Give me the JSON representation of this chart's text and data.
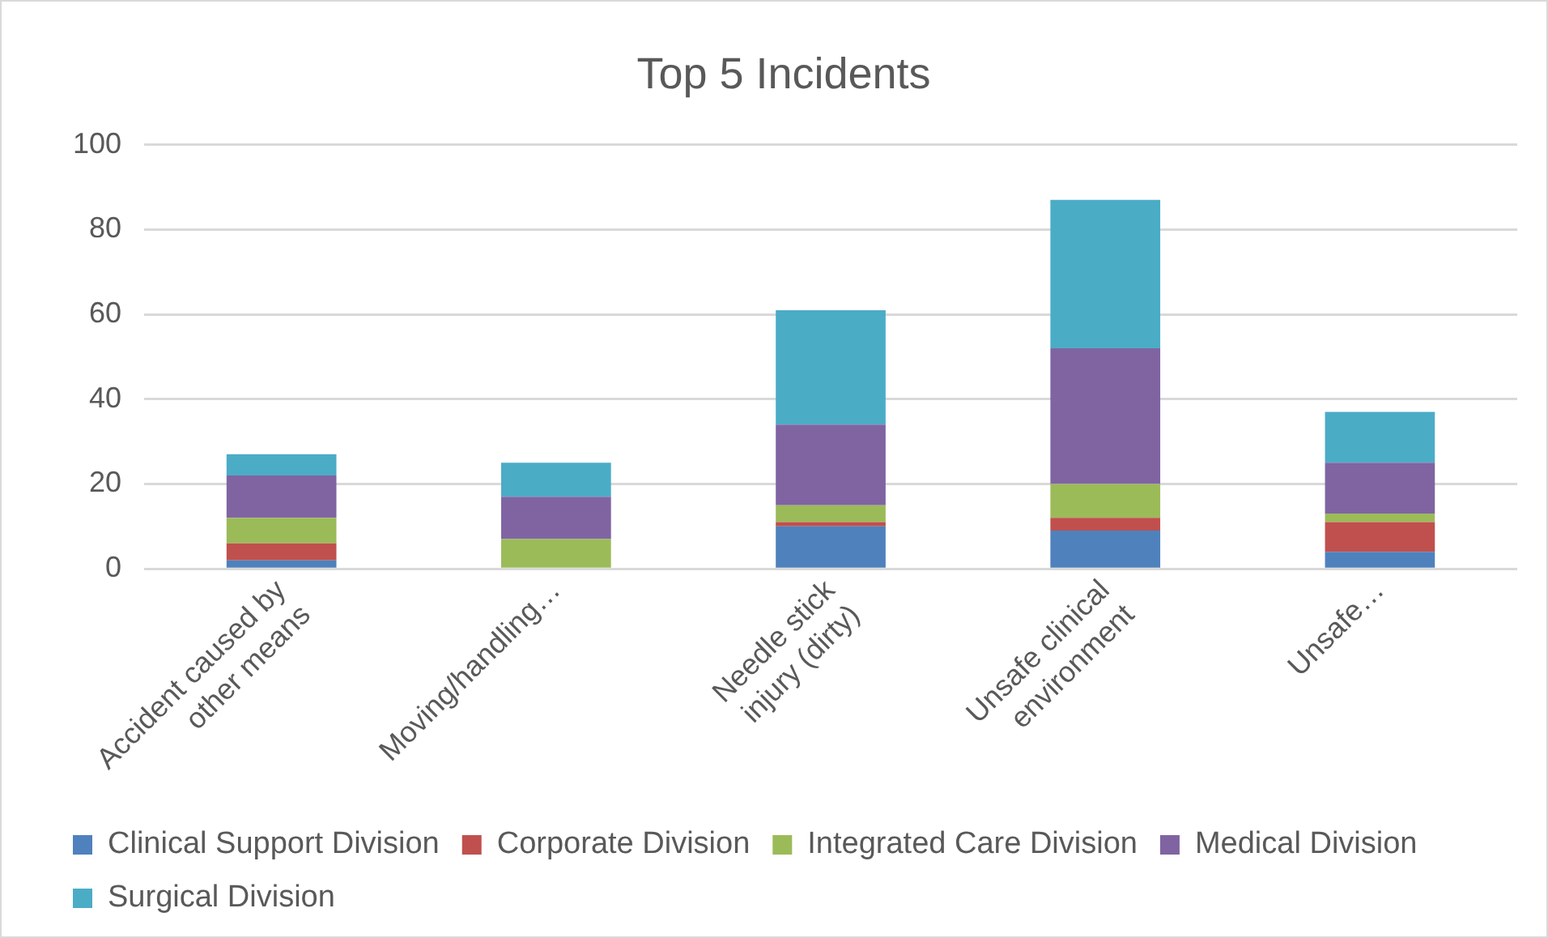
{
  "chart_data": {
    "type": "bar",
    "title": "Top 5 Incidents",
    "stacked": true,
    "categories": [
      "Accident caused by other means",
      "Moving/handling…",
      "Needle stick injury (dirty)",
      "Unsafe clinical environment",
      "Unsafe…"
    ],
    "series": [
      {
        "name": "Clinical Support Division",
        "color": "#4f81bd",
        "values": [
          2,
          0,
          10,
          9,
          4
        ]
      },
      {
        "name": "Corporate Division",
        "color": "#c0504d",
        "values": [
          4,
          0,
          1,
          3,
          7
        ]
      },
      {
        "name": "Integrated Care Division",
        "color": "#9bbb59",
        "values": [
          6,
          7,
          4,
          8,
          2
        ]
      },
      {
        "name": "Medical Division",
        "color": "#8064a2",
        "values": [
          10,
          10,
          19,
          32,
          12
        ]
      },
      {
        "name": "Surgical Division",
        "color": "#4bacc6",
        "values": [
          5,
          8,
          27,
          35,
          12
        ]
      }
    ],
    "ylim": [
      0,
      100
    ],
    "yticks": [
      0,
      20,
      40,
      60,
      80,
      100
    ],
    "grid": "y",
    "legend": "bottom"
  }
}
